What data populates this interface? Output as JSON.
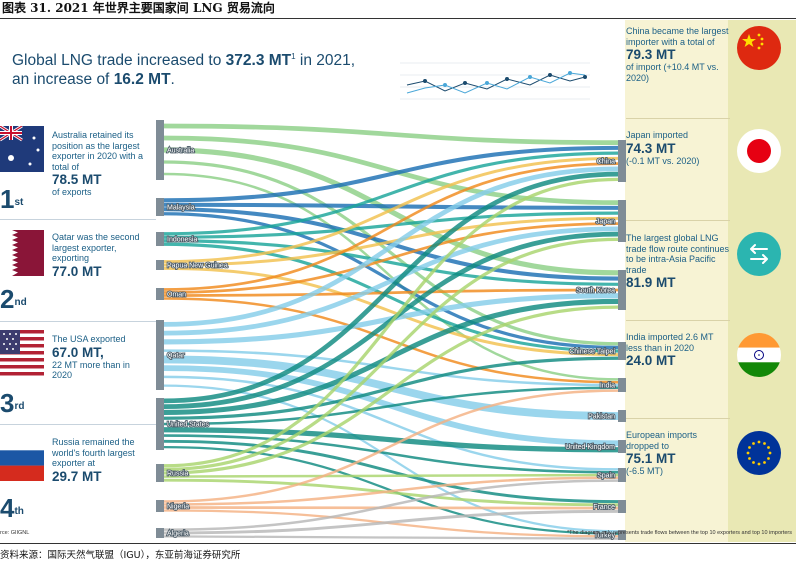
{
  "caption": "图表 31. 2021 年世界主要国家间 LNG 贸易流向",
  "headline": {
    "line1_pre": "Global LNG trade increased to ",
    "line1_value": "372.3 MT",
    "line1_sup": "1",
    "line1_post": " in 2021,",
    "line2_pre": "an increase of ",
    "line2_value": "16.2 MT",
    "line2_post": "."
  },
  "exporters": [
    {
      "rank": "1",
      "suffix": "st",
      "line1": "Australia retained its position as the largest exporter in 2020 with a total of",
      "value": "78.5 MT",
      "line2": "of exports",
      "flag": "australia-flag"
    },
    {
      "rank": "2",
      "suffix": "nd",
      "line1": "Qatar was the second largest exporter, exporting",
      "value": "77.0 MT",
      "line2": "",
      "flag": "qatar-flag"
    },
    {
      "rank": "3",
      "suffix": "rd",
      "line1": "The USA exported",
      "value": "67.0 MT,",
      "line2": "22 MT more than in 2020",
      "flag": "usa-flag"
    },
    {
      "rank": "4",
      "suffix": "th",
      "line1": "Russia remained the world's fourth largest exporter at",
      "value": "29.7 MT",
      "line2": "",
      "flag": "russia-flag"
    }
  ],
  "importers": [
    {
      "line1": "China became the largest importer with a total of",
      "value": "79.3 MT",
      "line2": "of import (+10.4 MT vs. 2020)",
      "flag": "china-flag"
    },
    {
      "line1": "Japan imported",
      "value": "74.3 MT",
      "line2": "(-0.1 MT vs. 2020)",
      "flag": "japan-flag"
    },
    {
      "line1": "The largest global LNG trade flow route continues to be intra-Asia Pacific trade",
      "value": "81.9 MT",
      "line2": "",
      "flag": "arrows-icon"
    },
    {
      "line1": "India imported 2.6 MT less than in 2020",
      "value": "24.0 MT",
      "line2": "",
      "flag": "india-flag"
    },
    {
      "line1": "European imports dropped to",
      "value": "75.1 MT",
      "line2": "(-6.5 MT)",
      "flag": "eu-flag"
    }
  ],
  "chart_data": {
    "type": "sankey",
    "sources": [
      "Australia",
      "Malaysia",
      "Indonesia",
      "Papua New Guinea",
      "Oman",
      "Qatar",
      "United States",
      "Russia",
      "Nigeria",
      "Algeria"
    ],
    "targets": [
      "China",
      "Japan",
      "South Korea",
      "Chinese Taipei",
      "India",
      "Pakistan",
      "United Kingdom",
      "Spain",
      "France",
      "Turkey"
    ],
    "source_colors": {
      "Australia": "#8ccf86",
      "Malaysia": "#1b6fb3",
      "Indonesia": "#1aa59a",
      "Papua New Guinea": "#f2c14e",
      "Oman": "#f08a1c",
      "Qatar": "#85cde9",
      "United States": "#0f8a80",
      "Russia": "#a8d46c",
      "Nigeria": "#f4b183",
      "Algeria": "#b7b7b7"
    },
    "flows": [
      {
        "from": "Australia",
        "to": "China"
      },
      {
        "from": "Australia",
        "to": "Japan"
      },
      {
        "from": "Australia",
        "to": "South Korea"
      },
      {
        "from": "Australia",
        "to": "Chinese Taipei"
      },
      {
        "from": "Australia",
        "to": "India"
      },
      {
        "from": "Malaysia",
        "to": "China"
      },
      {
        "from": "Malaysia",
        "to": "Japan"
      },
      {
        "from": "Malaysia",
        "to": "South Korea"
      },
      {
        "from": "Malaysia",
        "to": "Chinese Taipei"
      },
      {
        "from": "Indonesia",
        "to": "China"
      },
      {
        "from": "Indonesia",
        "to": "Japan"
      },
      {
        "from": "Indonesia",
        "to": "South Korea"
      },
      {
        "from": "Indonesia",
        "to": "Chinese Taipei"
      },
      {
        "from": "Papua New Guinea",
        "to": "China"
      },
      {
        "from": "Papua New Guinea",
        "to": "Japan"
      },
      {
        "from": "Papua New Guinea",
        "to": "Chinese Taipei"
      },
      {
        "from": "Oman",
        "to": "China"
      },
      {
        "from": "Oman",
        "to": "Japan"
      },
      {
        "from": "Oman",
        "to": "South Korea"
      },
      {
        "from": "Oman",
        "to": "India"
      },
      {
        "from": "Qatar",
        "to": "China"
      },
      {
        "from": "Qatar",
        "to": "Japan"
      },
      {
        "from": "Qatar",
        "to": "South Korea"
      },
      {
        "from": "Qatar",
        "to": "India"
      },
      {
        "from": "Qatar",
        "to": "Pakistan"
      },
      {
        "from": "Qatar",
        "to": "United Kingdom"
      },
      {
        "from": "Qatar",
        "to": "Spain"
      },
      {
        "from": "Qatar",
        "to": "Turkey"
      },
      {
        "from": "United States",
        "to": "China"
      },
      {
        "from": "United States",
        "to": "Japan"
      },
      {
        "from": "United States",
        "to": "South Korea"
      },
      {
        "from": "United States",
        "to": "Chinese Taipei"
      },
      {
        "from": "United States",
        "to": "India"
      },
      {
        "from": "United States",
        "to": "United Kingdom"
      },
      {
        "from": "United States",
        "to": "Spain"
      },
      {
        "from": "United States",
        "to": "France"
      },
      {
        "from": "United States",
        "to": "Turkey"
      },
      {
        "from": "Russia",
        "to": "China"
      },
      {
        "from": "Russia",
        "to": "Japan"
      },
      {
        "from": "Russia",
        "to": "South Korea"
      },
      {
        "from": "Russia",
        "to": "Spain"
      },
      {
        "from": "Russia",
        "to": "France"
      },
      {
        "from": "Nigeria",
        "to": "India"
      },
      {
        "from": "Nigeria",
        "to": "Spain"
      },
      {
        "from": "Nigeria",
        "to": "France"
      },
      {
        "from": "Nigeria",
        "to": "Turkey"
      },
      {
        "from": "Algeria",
        "to": "Spain"
      },
      {
        "from": "Algeria",
        "to": "France"
      },
      {
        "from": "Algeria",
        "to": "Turkey"
      }
    ]
  },
  "source_note": "rce: GIIGNL",
  "footnote": "*The diagram only represents trade flows between the top 10 exporters and top 10 importers",
  "data_source": "资料来源：国际天然气联盟（IGU），东亚前海证券研究所"
}
